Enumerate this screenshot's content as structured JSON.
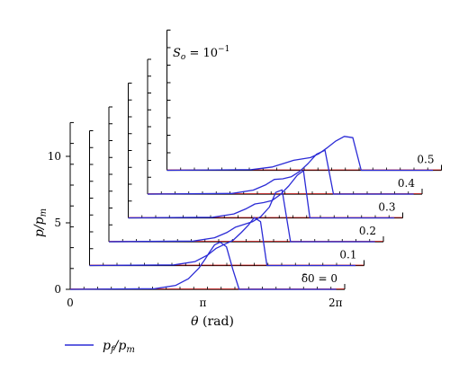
{
  "chart_data": {
    "type": "line",
    "subtitle": "S_o = 10^-1",
    "subtitle_parts": {
      "lhs": "S",
      "sub": "o",
      "eq": " = 10",
      "sup": "−1"
    },
    "xlabel": "θ (rad)",
    "ylabel": "p/p_m",
    "x_ticks": [
      "0",
      "π",
      "2π"
    ],
    "y_ticks": [
      "0",
      "5",
      "10"
    ],
    "xlim": [
      0,
      6.5
    ],
    "ylim": [
      0,
      12
    ],
    "legend": {
      "label": "p_f/p_m",
      "placement": "bottom-left",
      "color": "#2b2bd6"
    },
    "colors": {
      "curve": "#2b2bd6",
      "baseline": "#e02020",
      "axis": "#000000"
    },
    "series": [
      {
        "delta_label": "δ̄0 = 0",
        "depth": 0,
        "x": [
          0,
          2,
          2.5,
          2.8,
          3.05,
          3.2,
          3.3,
          3.42,
          3.55,
          3.7,
          3.85,
          4.0,
          6.3
        ],
        "y": [
          0,
          0.05,
          0.3,
          0.8,
          1.6,
          2.3,
          2.8,
          3.35,
          3.55,
          3.2,
          1.5,
          0,
          0
        ]
      },
      {
        "delta_label": "0.1",
        "depth": 1,
        "x": [
          0,
          2,
          2.5,
          2.8,
          3.0,
          3.2,
          3.4,
          3.6,
          3.75,
          3.9,
          4.05,
          4.2,
          6.3
        ],
        "y": [
          0,
          0.05,
          0.3,
          0.8,
          1.3,
          1.6,
          1.9,
          2.5,
          3.0,
          3.6,
          3.3,
          0,
          0
        ]
      },
      {
        "delta_label": "0.2",
        "depth": 2,
        "x": [
          0,
          2,
          2.5,
          2.8,
          3.0,
          3.2,
          3.4,
          3.6,
          3.8,
          3.95,
          4.1,
          4.3,
          6.3
        ],
        "y": [
          0,
          0.05,
          0.3,
          0.7,
          1.1,
          1.3,
          1.5,
          1.9,
          2.6,
          3.7,
          3.9,
          0,
          0
        ]
      },
      {
        "delta_label": "0.3",
        "depth": 3,
        "x": [
          0,
          2,
          2.5,
          2.8,
          3.0,
          3.2,
          3.4,
          3.6,
          3.8,
          4.0,
          4.15,
          4.3,
          6.3
        ],
        "y": [
          0,
          0.05,
          0.3,
          0.7,
          1.05,
          1.15,
          1.3,
          1.75,
          2.4,
          3.2,
          3.55,
          0,
          0
        ]
      },
      {
        "delta_label": "0.4",
        "depth": 4,
        "x": [
          0,
          2,
          2.5,
          2.8,
          3.0,
          3.2,
          3.4,
          3.6,
          3.8,
          4.0,
          4.2,
          4.4,
          6.3
        ],
        "y": [
          0,
          0.05,
          0.3,
          0.7,
          1.1,
          1.15,
          1.3,
          1.7,
          2.3,
          3.0,
          3.3,
          0,
          0
        ]
      },
      {
        "delta_label": "0.5",
        "depth": 5,
        "x": [
          0,
          2,
          2.5,
          2.8,
          3.0,
          3.2,
          3.4,
          3.6,
          3.8,
          4.0,
          4.2,
          4.4,
          4.6,
          6.3
        ],
        "y": [
          0,
          0.05,
          0.25,
          0.55,
          0.75,
          0.85,
          0.95,
          1.25,
          1.7,
          2.2,
          2.55,
          2.45,
          0,
          0
        ]
      }
    ]
  }
}
